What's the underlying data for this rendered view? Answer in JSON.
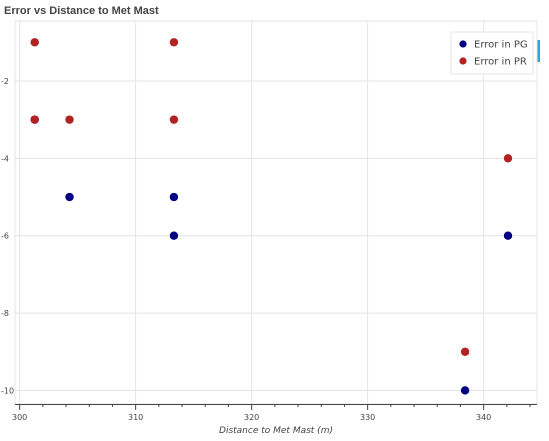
{
  "chart_data": {
    "type": "scatter",
    "title": "Error vs Distance to Met Mast",
    "xlabel": "Distance to Met Mast (m)",
    "ylabel": "",
    "xlim": [
      299.6,
      344.6
    ],
    "ylim": [
      -10.35,
      -0.45
    ],
    "xticks": [
      300,
      310,
      320,
      330,
      340
    ],
    "yticks": [
      -2,
      -4,
      -6,
      -8,
      -10
    ],
    "yticks_labels": [
      "-2",
      "-4",
      "-6",
      "-8",
      "-10"
    ],
    "grid": true,
    "legend_position": "top-right",
    "series": [
      {
        "name": "Error in PG",
        "color": "#000080",
        "points": [
          {
            "x": 301.3,
            "y": -3
          },
          {
            "x": 304.3,
            "y": -5
          },
          {
            "x": 313.3,
            "y": -5
          },
          {
            "x": 313.3,
            "y": -6
          },
          {
            "x": 342.1,
            "y": -6
          },
          {
            "x": 338.4,
            "y": -10
          }
        ]
      },
      {
        "name": "Error in PR",
        "color": "#b22222",
        "points": [
          {
            "x": 301.3,
            "y": -1
          },
          {
            "x": 313.3,
            "y": -1
          },
          {
            "x": 301.3,
            "y": -3
          },
          {
            "x": 304.3,
            "y": -3
          },
          {
            "x": 313.3,
            "y": -3
          },
          {
            "x": 342.1,
            "y": -4
          },
          {
            "x": 338.4,
            "y": -9
          }
        ]
      }
    ]
  }
}
